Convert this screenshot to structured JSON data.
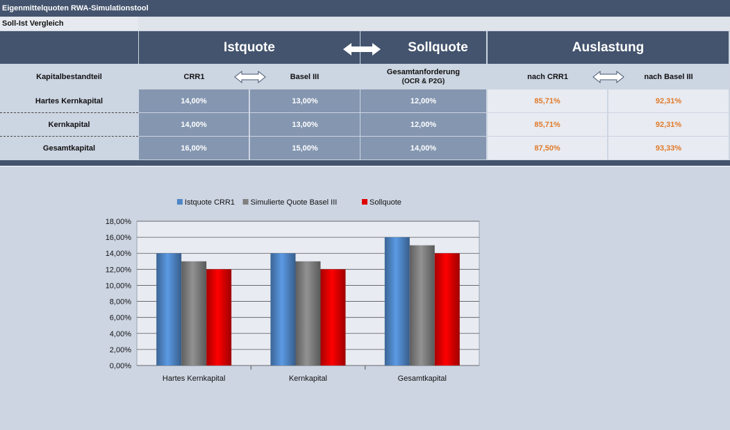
{
  "window": {
    "title": "Eigenmittelquoten RWA-Simulationstool"
  },
  "section": {
    "label": "Soll-Ist Vergleich"
  },
  "headers": {
    "istquote": "Istquote",
    "sollquote": "Sollquote",
    "auslastung": "Auslastung"
  },
  "subheaders": {
    "kapitalbestandteil": "Kapitalbestandteil",
    "crr1": "CRR1",
    "basel3": "Basel III",
    "gesamtanforderung": "Gesamtanforderung",
    "gesamtanforderung_note": "(OCR & P2G)",
    "nach_crr1": "nach CRR1",
    "nach_basel3": "nach Basel III"
  },
  "rows": [
    {
      "label": "Hartes Kernkapital",
      "crr1": "14,00%",
      "basel3": "13,00%",
      "soll": "12,00%",
      "ausl_crr1": "85,71%",
      "ausl_basel3": "92,31%"
    },
    {
      "label": "Kernkapital",
      "crr1": "14,00%",
      "basel3": "13,00%",
      "soll": "12,00%",
      "ausl_crr1": "85,71%",
      "ausl_basel3": "92,31%"
    },
    {
      "label": "Gesamtkapital",
      "crr1": "16,00%",
      "basel3": "15,00%",
      "soll": "14,00%",
      "ausl_crr1": "87,50%",
      "ausl_basel3": "93,33%"
    }
  ],
  "chart_data": {
    "type": "bar",
    "categories": [
      "Hartes Kernkapital",
      "Kernkapital",
      "Gesamtkapital"
    ],
    "series": [
      {
        "name": "Istquote CRR1",
        "values": [
          14,
          14,
          16
        ],
        "color": "#4f86c6"
      },
      {
        "name": "Simulierte Quote Basel III",
        "values": [
          13,
          13,
          15
        ],
        "color": "#7f7f7f"
      },
      {
        "name": "Sollquote",
        "values": [
          12,
          12,
          14
        ],
        "color": "#e00000"
      }
    ],
    "yticks": [
      "0,00%",
      "2,00%",
      "4,00%",
      "6,00%",
      "8,00%",
      "10,00%",
      "12,00%",
      "14,00%",
      "16,00%",
      "18,00%"
    ],
    "ylim": [
      0,
      18
    ],
    "grid": true,
    "legend": "top"
  }
}
